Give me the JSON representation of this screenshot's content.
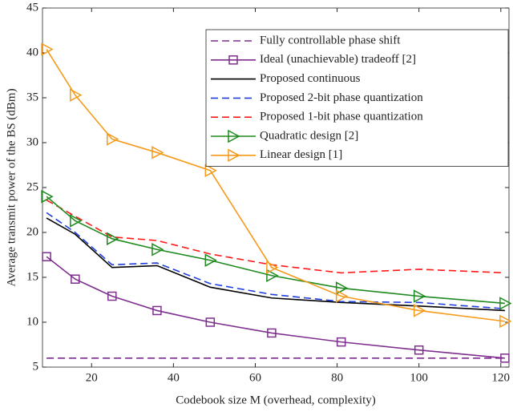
{
  "chart_data": {
    "type": "line",
    "xlabel": "Codebook size M (overhead, complexity)",
    "ylabel": "Average transmit power of the BS (dBm)",
    "x": [
      9,
      16,
      25,
      36,
      49,
      64,
      81,
      100,
      121
    ],
    "xlim": [
      8,
      122
    ],
    "xticks": [
      20,
      40,
      60,
      80,
      100,
      120
    ],
    "ylim": [
      5,
      45
    ],
    "yticks": [
      5,
      10,
      15,
      20,
      25,
      30,
      35,
      40,
      45
    ],
    "grid": false,
    "legend": "top-right",
    "series": [
      {
        "name": "Fully controllable phase shift",
        "color": "#7e2f8e",
        "dash": "dashed",
        "marker": "none",
        "values": [
          6.0,
          6.0,
          6.0,
          6.0,
          6.0,
          6.0,
          6.0,
          6.0,
          6.0
        ]
      },
      {
        "name": "Ideal (unachievable) tradeoff [2]",
        "color": "#7e2f8e",
        "dash": "solid",
        "marker": "square",
        "values": [
          17.3,
          14.8,
          12.9,
          11.3,
          10.0,
          8.8,
          7.8,
          6.9,
          6.0
        ]
      },
      {
        "name": "Proposed continuous",
        "color": "#000000",
        "dash": "solid",
        "marker": "none",
        "values": [
          21.6,
          19.8,
          16.1,
          16.3,
          13.9,
          12.7,
          12.2,
          11.8,
          11.3
        ]
      },
      {
        "name": "Proposed 2-bit phase quantization",
        "color": "#1f3fe0",
        "dash": "dashed",
        "marker": "none",
        "values": [
          22.2,
          20.0,
          16.4,
          16.6,
          14.3,
          13.1,
          12.3,
          12.2,
          11.5
        ]
      },
      {
        "name": "Proposed 1-bit phase quantization",
        "color": "#ff1a1a",
        "dash": "dashed",
        "marker": "none",
        "values": [
          23.6,
          21.8,
          19.5,
          19.1,
          17.6,
          16.4,
          15.5,
          15.9,
          15.5
        ]
      },
      {
        "name": "Quadratic design [2]",
        "color": "#1f8a1f",
        "dash": "solid",
        "marker": "triangle-right",
        "values": [
          24.0,
          21.3,
          19.3,
          18.1,
          16.9,
          15.2,
          13.8,
          12.9,
          12.1
        ]
      },
      {
        "name": "Linear design [1]",
        "color": "#f59a1b",
        "dash": "solid",
        "marker": "triangle-right",
        "values": [
          40.4,
          35.3,
          30.4,
          28.9,
          26.9,
          16.1,
          12.9,
          11.3,
          10.1
        ]
      }
    ]
  }
}
